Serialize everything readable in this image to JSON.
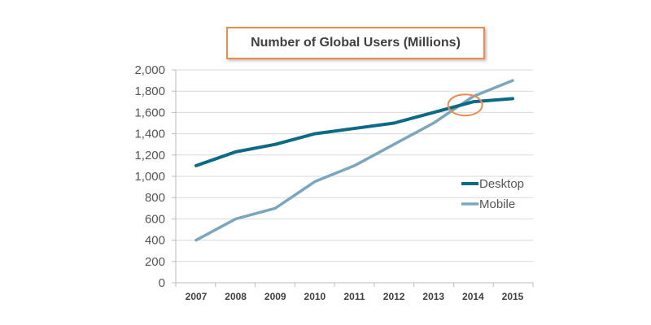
{
  "chart_data": {
    "type": "line",
    "title": "Number of Global Users (Millions)",
    "xlabel": "",
    "ylabel": "",
    "categories": [
      "2007",
      "2008",
      "2009",
      "2010",
      "2011",
      "2012",
      "2013",
      "2014",
      "2015"
    ],
    "series": [
      {
        "name": "Desktop",
        "color": "#0b6a85",
        "values": [
          1100,
          1230,
          1300,
          1400,
          1450,
          1500,
          1600,
          1700,
          1730
        ]
      },
      {
        "name": "Mobile",
        "color": "#7aa7bd",
        "values": [
          400,
          600,
          700,
          950,
          1100,
          1300,
          1500,
          1750,
          1900
        ]
      }
    ],
    "ylim": [
      0,
      2000
    ],
    "yticks": [
      0,
      200,
      400,
      600,
      800,
      1000,
      1200,
      1400,
      1600,
      1800,
      2000
    ],
    "ytick_labels": [
      "0",
      "200",
      "400",
      "600",
      "800",
      "1,000",
      "1,200",
      "1,400",
      "1,600",
      "1,800",
      "2,000"
    ],
    "grid": true,
    "legend_position": "right",
    "annotation": {
      "type": "ellipse",
      "color": "#f0894a",
      "note": "crossover between 2013 and 2014",
      "x_year": 2013.8,
      "y_value": 1670
    }
  }
}
